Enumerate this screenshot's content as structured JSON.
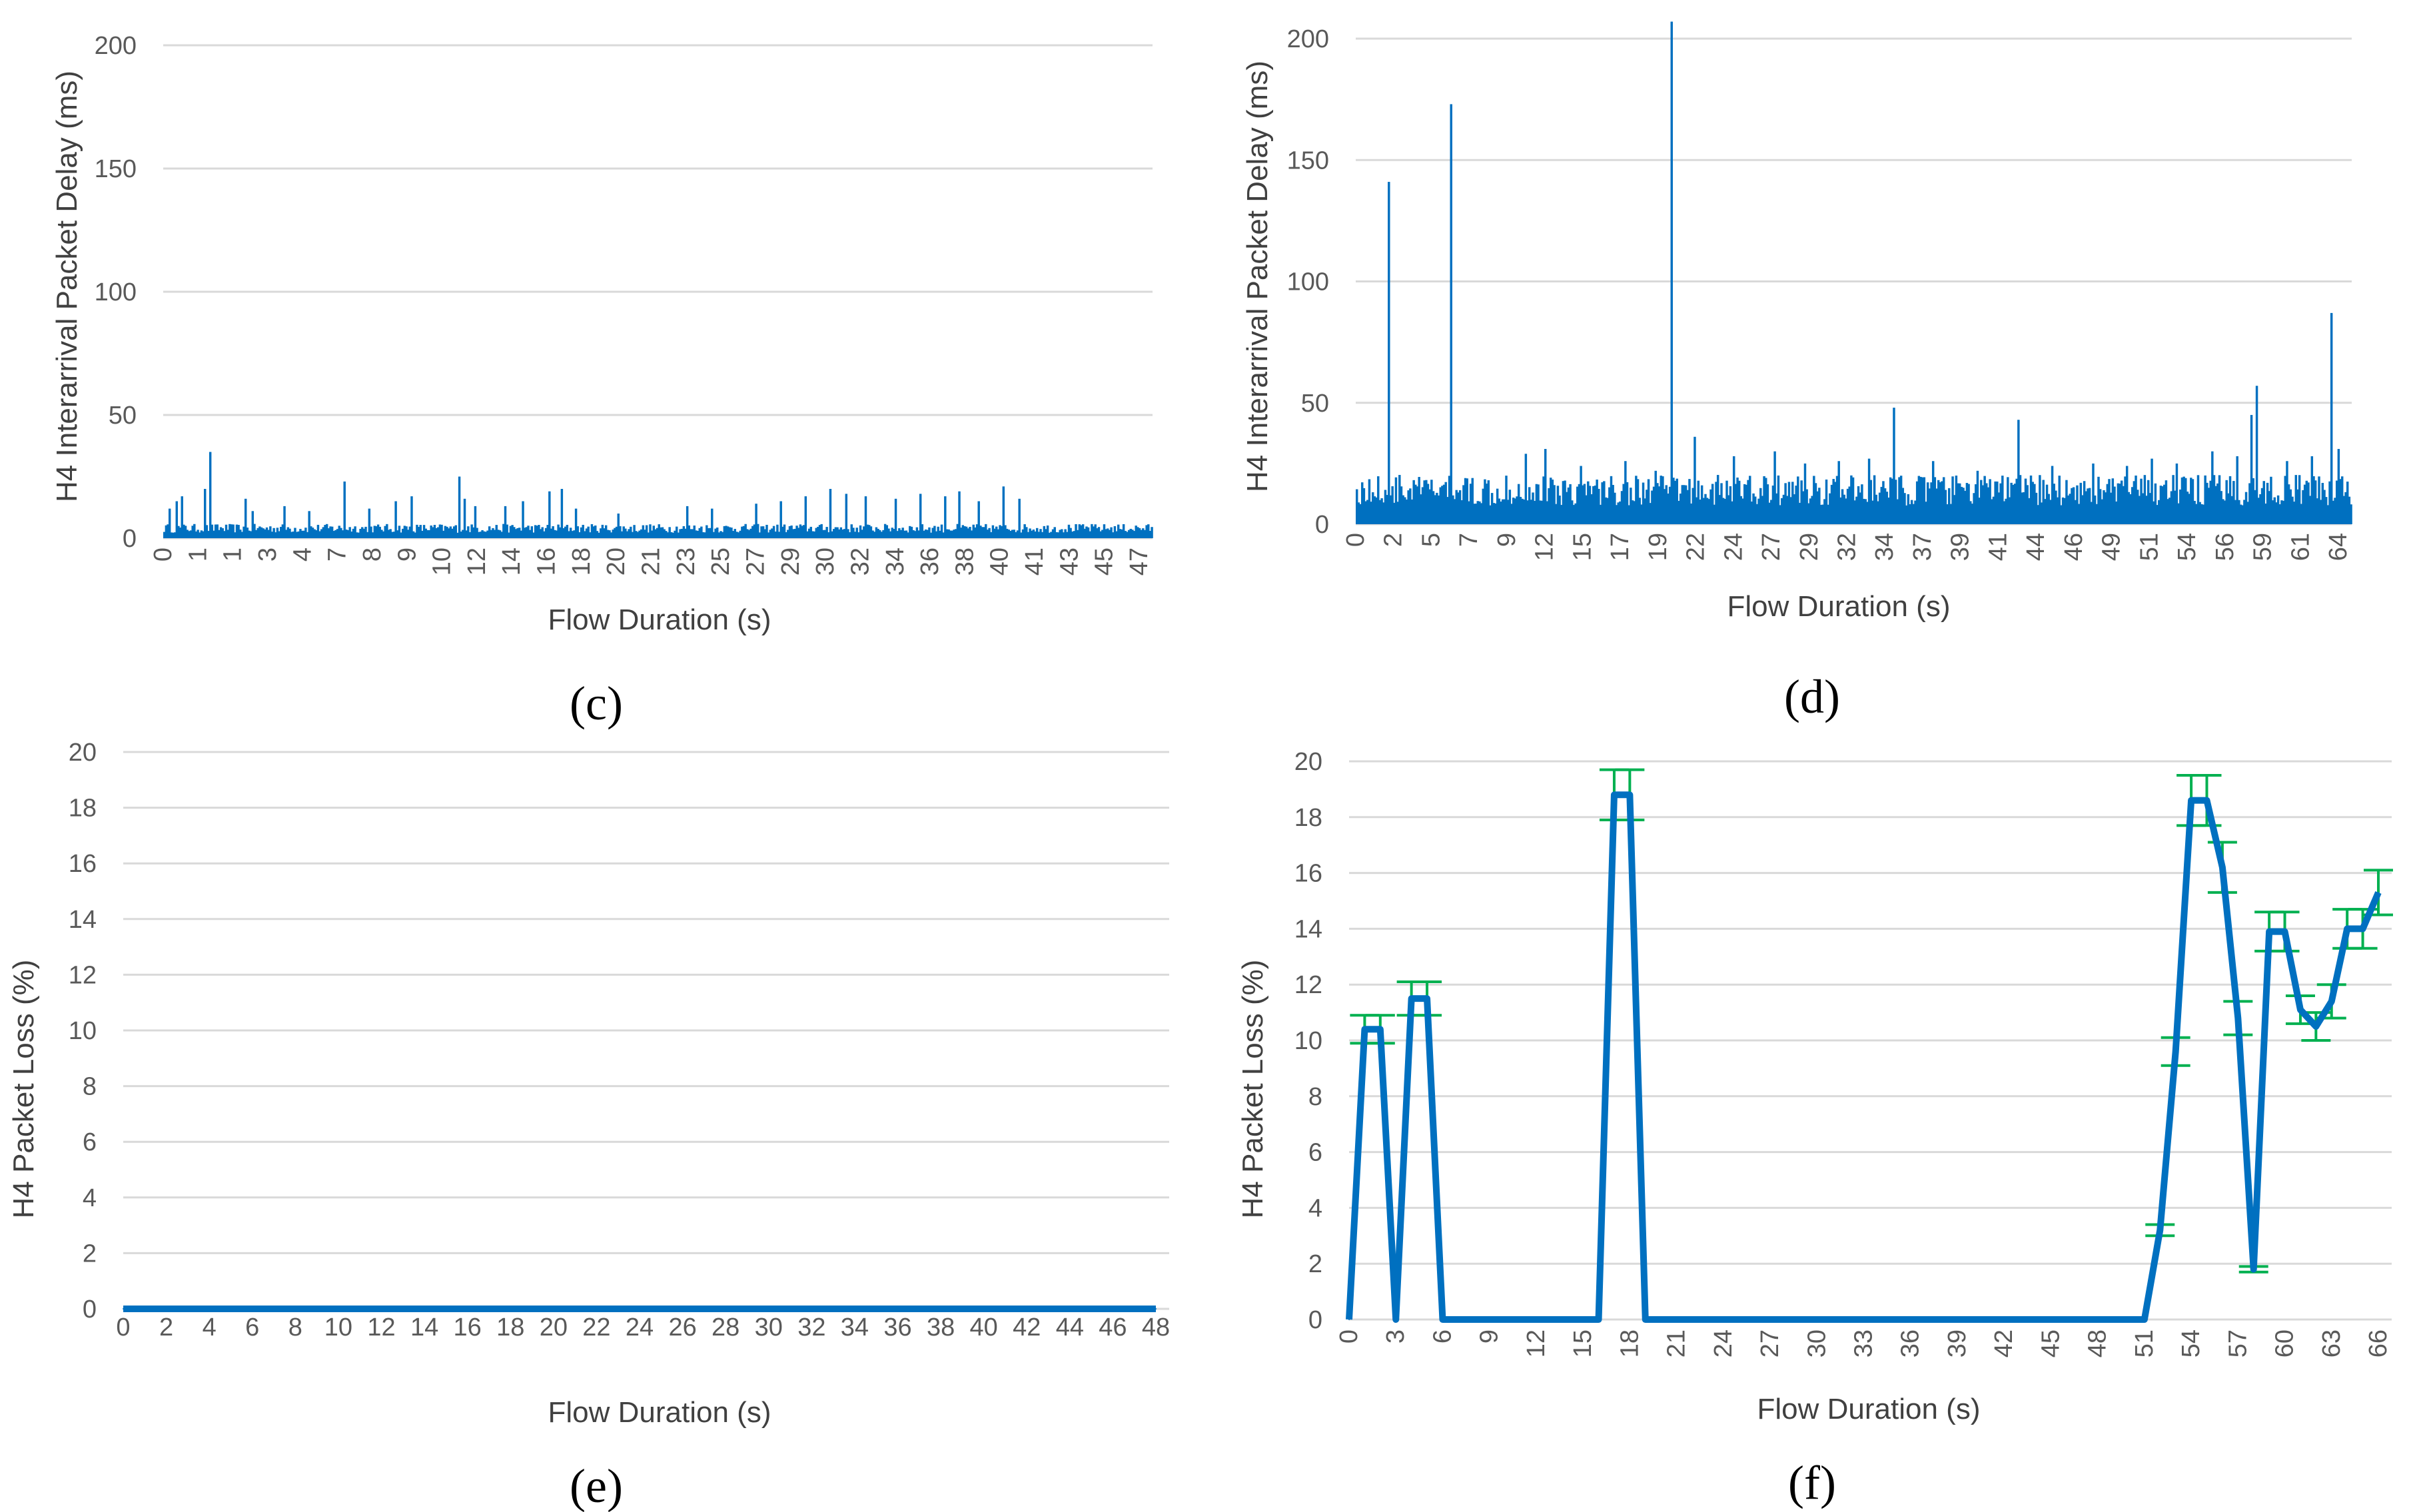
{
  "chart_data": [
    {
      "id": "c",
      "type": "bar",
      "panel_label": "(c)",
      "xlabel": "Flow Duration (s)",
      "ylabel": "H4 Interarrival Packet Delay (ms)",
      "ylim": [
        0,
        200
      ],
      "yticks": [
        0,
        50,
        100,
        150,
        200
      ],
      "x_tick_labels": [
        "0",
        "1",
        "1",
        "3",
        "4",
        "7",
        "8",
        "9",
        "10",
        "12",
        "14",
        "16",
        "18",
        "20",
        "21",
        "23",
        "25",
        "27",
        "29",
        "30",
        "32",
        "34",
        "36",
        "38",
        "40",
        "41",
        "43",
        "45",
        "47"
      ],
      "bar_color": "#0070C0",
      "baseline": 4,
      "peaks": [
        {
          "x": 0.012,
          "v": 12
        },
        {
          "x": 0.026,
          "v": 15
        },
        {
          "x": 0.037,
          "v": 17
        },
        {
          "x": 0.083,
          "v": 20
        },
        {
          "x": 0.094,
          "v": 35
        },
        {
          "x": 0.165,
          "v": 16
        },
        {
          "x": 0.18,
          "v": 11
        },
        {
          "x": 0.243,
          "v": 13
        },
        {
          "x": 0.295,
          "v": 11
        },
        {
          "x": 0.364,
          "v": 23
        },
        {
          "x": 0.415,
          "v": 12
        },
        {
          "x": 0.47,
          "v": 15
        },
        {
          "x": 0.5,
          "v": 17
        },
        {
          "x": 0.598,
          "v": 25
        },
        {
          "x": 0.61,
          "v": 16
        },
        {
          "x": 0.63,
          "v": 13
        },
        {
          "x": 0.69,
          "v": 13
        },
        {
          "x": 0.725,
          "v": 15
        },
        {
          "x": 0.78,
          "v": 19
        },
        {
          "x": 0.805,
          "v": 20
        },
        {
          "x": 0.835,
          "v": 12
        },
        {
          "x": 0.92,
          "v": 10
        },
        {
          "x": 1.06,
          "v": 13
        },
        {
          "x": 1.11,
          "v": 12
        },
        {
          "x": 1.2,
          "v": 14
        },
        {
          "x": 1.25,
          "v": 15
        },
        {
          "x": 1.3,
          "v": 17
        },
        {
          "x": 1.35,
          "v": 20
        },
        {
          "x": 1.38,
          "v": 18
        },
        {
          "x": 1.42,
          "v": 17
        },
        {
          "x": 1.48,
          "v": 16
        },
        {
          "x": 1.53,
          "v": 18
        },
        {
          "x": 1.58,
          "v": 17
        },
        {
          "x": 1.61,
          "v": 19
        },
        {
          "x": 1.65,
          "v": 15
        },
        {
          "x": 1.7,
          "v": 21
        },
        {
          "x": 1.73,
          "v": 16
        }
      ]
    },
    {
      "id": "d",
      "type": "bar",
      "panel_label": "(d)",
      "xlabel": "Flow Duration (s)",
      "ylabel": "H4 Interarrival Packet Delay (ms)",
      "ylim": [
        0,
        200
      ],
      "yticks": [
        0,
        50,
        100,
        150,
        200
      ],
      "x_tick_labels": [
        "0",
        "2",
        "5",
        "7",
        "9",
        "12",
        "15",
        "17",
        "19",
        "22",
        "24",
        "27",
        "29",
        "32",
        "34",
        "37",
        "39",
        "41",
        "44",
        "46",
        "49",
        "51",
        "54",
        "56",
        "59",
        "61",
        "64"
      ],
      "bar_color": "#0070C0",
      "baseline": 14,
      "peaks": [
        {
          "x": 0.02,
          "v": 10
        },
        {
          "x": 0.04,
          "v": 11
        },
        {
          "x": 0.065,
          "v": 141
        },
        {
          "x": 0.19,
          "v": 173
        },
        {
          "x": 0.22,
          "v": 19
        },
        {
          "x": 0.3,
          "v": 20
        },
        {
          "x": 0.34,
          "v": 29
        },
        {
          "x": 0.38,
          "v": 31
        },
        {
          "x": 0.45,
          "v": 24
        },
        {
          "x": 0.54,
          "v": 26
        },
        {
          "x": 0.6,
          "v": 22
        },
        {
          "x": 0.635,
          "v": 207
        },
        {
          "x": 0.68,
          "v": 36
        },
        {
          "x": 0.76,
          "v": 28
        },
        {
          "x": 0.84,
          "v": 30
        },
        {
          "x": 0.9,
          "v": 25
        },
        {
          "x": 0.97,
          "v": 26
        },
        {
          "x": 1.03,
          "v": 27
        },
        {
          "x": 1.08,
          "v": 48
        },
        {
          "x": 1.16,
          "v": 26
        },
        {
          "x": 1.25,
          "v": 22
        },
        {
          "x": 1.3,
          "v": 20
        },
        {
          "x": 1.33,
          "v": 43
        },
        {
          "x": 1.4,
          "v": 24
        },
        {
          "x": 1.48,
          "v": 25
        },
        {
          "x": 1.55,
          "v": 24
        },
        {
          "x": 1.6,
          "v": 27
        },
        {
          "x": 1.65,
          "v": 25
        },
        {
          "x": 1.72,
          "v": 30
        },
        {
          "x": 1.77,
          "v": 28
        },
        {
          "x": 1.8,
          "v": 45
        },
        {
          "x": 1.81,
          "v": 57
        },
        {
          "x": 1.87,
          "v": 26
        },
        {
          "x": 1.92,
          "v": 28
        },
        {
          "x": 1.96,
          "v": 87
        },
        {
          "x": 1.975,
          "v": 31
        }
      ]
    },
    {
      "id": "e",
      "type": "line",
      "panel_label": "(e)",
      "xlabel": "Flow Duration (s)",
      "ylabel": "H4 Packet Loss (%)",
      "ylim": [
        0,
        20
      ],
      "yticks": [
        0,
        2,
        4,
        6,
        8,
        10,
        12,
        14,
        16,
        18,
        20
      ],
      "x_tick_labels": [
        "0",
        "2",
        "4",
        "6",
        "8",
        "10",
        "12",
        "14",
        "16",
        "18",
        "20",
        "22",
        "24",
        "26",
        "28",
        "30",
        "32",
        "34",
        "36",
        "38",
        "40",
        "42",
        "44",
        "46",
        "48"
      ],
      "x": [
        0,
        49
      ],
      "values": [
        0,
        0
      ],
      "line_color": "#0070C0"
    },
    {
      "id": "f",
      "type": "line",
      "panel_label": "(f)",
      "xlabel": "Flow Duration (s)",
      "ylabel": "H4 Packet Loss (%)",
      "ylim": [
        0,
        20
      ],
      "xlim": [
        0,
        66
      ],
      "yticks": [
        0,
        2,
        4,
        6,
        8,
        10,
        12,
        14,
        16,
        18,
        20
      ],
      "x_tick_labels": [
        "0",
        "3",
        "6",
        "9",
        "12",
        "15",
        "18",
        "21",
        "24",
        "27",
        "30",
        "33",
        "36",
        "39",
        "42",
        "45",
        "48",
        "51",
        "54",
        "57",
        "60",
        "63",
        "66"
      ],
      "x": [
        0,
        1,
        2,
        3,
        4,
        5,
        6,
        7,
        16,
        17,
        18,
        19,
        20,
        51,
        52,
        53,
        54,
        55,
        56,
        57,
        58,
        59,
        60,
        61,
        62,
        63,
        64,
        65,
        66
      ],
      "values": [
        0,
        10.4,
        10.4,
        0,
        11.5,
        11.5,
        0,
        0,
        0,
        18.8,
        18.8,
        0,
        0,
        0,
        3.2,
        9.6,
        18.6,
        18.6,
        16.2,
        10.8,
        1.8,
        13.9,
        13.9,
        11.1,
        10.5,
        11.4,
        14,
        14,
        15.3
      ],
      "error": [
        0,
        0.5,
        0.5,
        0,
        0.6,
        0.6,
        0,
        0,
        0,
        0.9,
        0.9,
        0,
        0,
        0,
        0.2,
        0.5,
        0.9,
        0.9,
        0.9,
        0.6,
        0.1,
        0.7,
        0.7,
        0.5,
        0.5,
        0.6,
        0.7,
        0.7,
        0.8
      ],
      "line_color": "#0070C0",
      "error_color": "#00B050"
    }
  ]
}
